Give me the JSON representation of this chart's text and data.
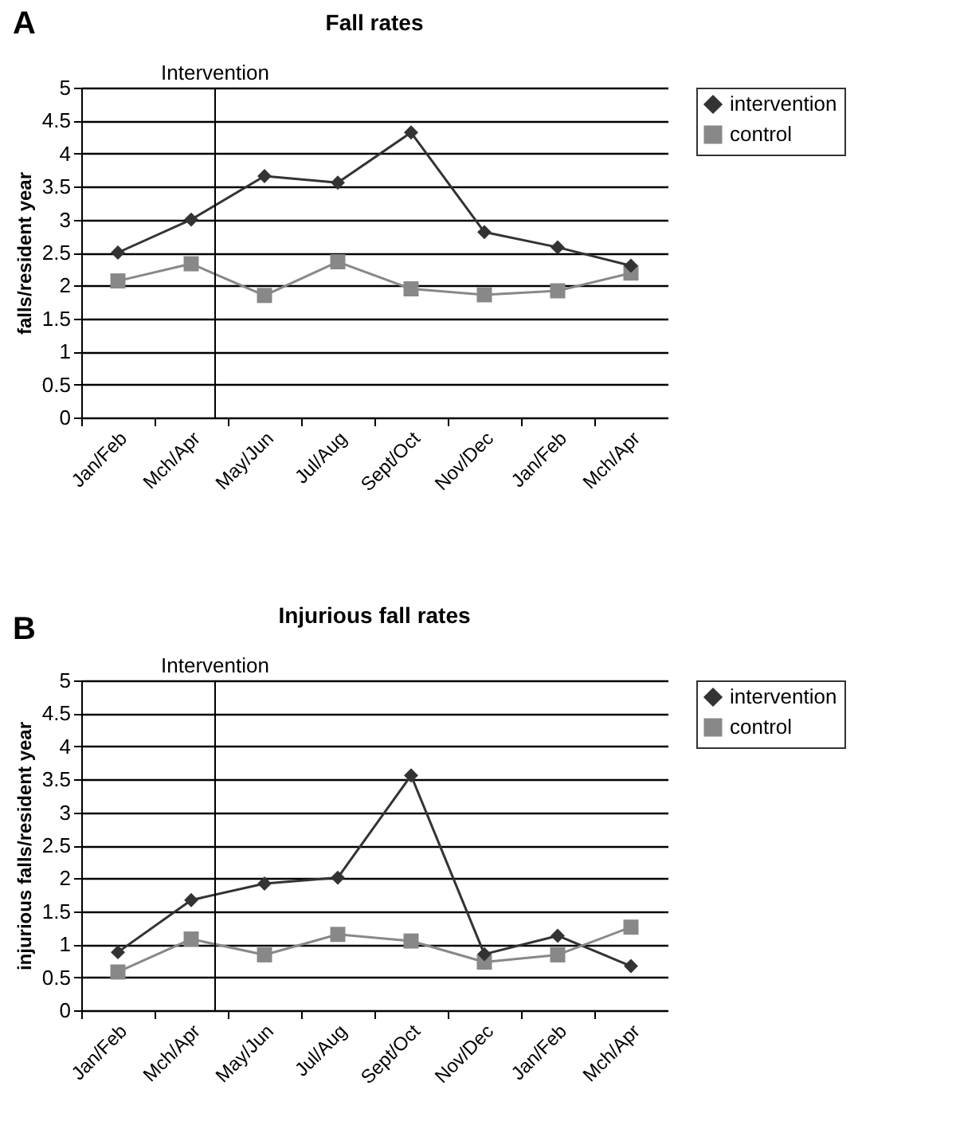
{
  "chart_data": [
    {
      "type": "line",
      "title": "Fall rates",
      "ylabel": "falls/resident year",
      "annotations": [
        "A"
      ],
      "categories": [
        "Jan/Feb",
        "Mch/Apr",
        "May/Jun",
        "Jul/Aug",
        "Sept/Oct",
        "Nov/Dec",
        "Jan/Feb",
        "Mch/Apr"
      ],
      "series": [
        {
          "name": "intervention",
          "color": "#333333",
          "marker": "diamond",
          "values": [
            2.5,
            3.0,
            3.66,
            3.56,
            4.32,
            2.81,
            2.58,
            2.3
          ]
        },
        {
          "name": "control",
          "color": "#888888",
          "marker": "square",
          "values": [
            2.07,
            2.33,
            1.85,
            2.36,
            1.95,
            1.86,
            1.92,
            2.19
          ]
        }
      ],
      "ylim": [
        0,
        5
      ],
      "yticks": [
        0,
        0.5,
        1,
        1.5,
        2,
        2.5,
        3,
        3.5,
        4,
        4.5,
        5
      ],
      "grid": "y",
      "legend": "right",
      "ref_lines": [
        {
          "axis": "x",
          "value": "Mch/Apr",
          "label": "Intervention"
        }
      ]
    },
    {
      "type": "line",
      "title": "Injurious fall rates",
      "ylabel": "injurious falls/resident year",
      "annotations": [
        "B"
      ],
      "categories": [
        "Jan/Feb",
        "Mch/Apr",
        "May/Jun",
        "Jul/Aug",
        "Sept/Oct",
        "Nov/Dec",
        "Jan/Feb",
        "Mch/Apr"
      ],
      "series": [
        {
          "name": "intervention",
          "color": "#333333",
          "marker": "diamond",
          "values": [
            0.88,
            1.67,
            1.92,
            2.01,
            3.56,
            0.85,
            1.13,
            0.67
          ]
        },
        {
          "name": "control",
          "color": "#888888",
          "marker": "square",
          "values": [
            0.58,
            1.08,
            0.84,
            1.15,
            1.05,
            0.73,
            0.84,
            1.26
          ]
        }
      ],
      "ylim": [
        0,
        5
      ],
      "yticks": [
        0,
        0.5,
        1,
        1.5,
        2,
        2.5,
        3,
        3.5,
        4,
        4.5,
        5
      ],
      "grid": "y",
      "legend": "right",
      "ref_lines": [
        {
          "axis": "x",
          "value": "Mch/Apr",
          "label": "Intervention"
        }
      ]
    }
  ]
}
